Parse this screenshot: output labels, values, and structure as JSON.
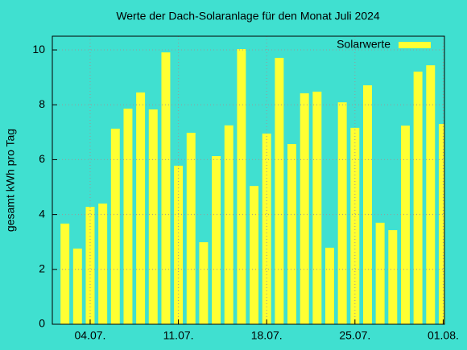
{
  "chart_data": {
    "type": "bar",
    "title": "Werte der Dach-Solaranlage für den Monat Juli 2024",
    "ylabel": "gesamt kWh pro Tag",
    "series": [
      {
        "name": "Solarwerte",
        "color": "#ffff33",
        "x": [
          2,
          3,
          4,
          5,
          6,
          7,
          8,
          9,
          10,
          11,
          12,
          13,
          14,
          15,
          16,
          17,
          18,
          19,
          20,
          21,
          22,
          23,
          24,
          25,
          26,
          27,
          28,
          29,
          30,
          31,
          32
        ],
        "values": [
          3.67,
          2.76,
          4.28,
          4.4,
          7.13,
          7.86,
          8.45,
          7.83,
          9.91,
          5.78,
          6.98,
          2.99,
          6.13,
          7.25,
          10.03,
          5.04,
          6.95,
          9.71,
          6.57,
          8.42,
          8.48,
          2.79,
          8.09,
          7.16,
          8.71,
          3.7,
          3.43,
          7.24,
          9.21,
          9.44,
          7.3
        ]
      }
    ],
    "xlim": [
      1,
      32.1
    ],
    "xticks": [
      {
        "value": 4,
        "label": "04.07."
      },
      {
        "value": 11,
        "label": "11.07."
      },
      {
        "value": 18,
        "label": "18.07."
      },
      {
        "value": 25,
        "label": "25.07."
      },
      {
        "value": 32,
        "label": "01.08."
      }
    ],
    "ylim": [
      0,
      10.5
    ],
    "yticks": [
      0,
      2,
      4,
      6,
      8,
      10
    ],
    "grid": true,
    "legend": "top-right",
    "background": "#40e0d0"
  }
}
